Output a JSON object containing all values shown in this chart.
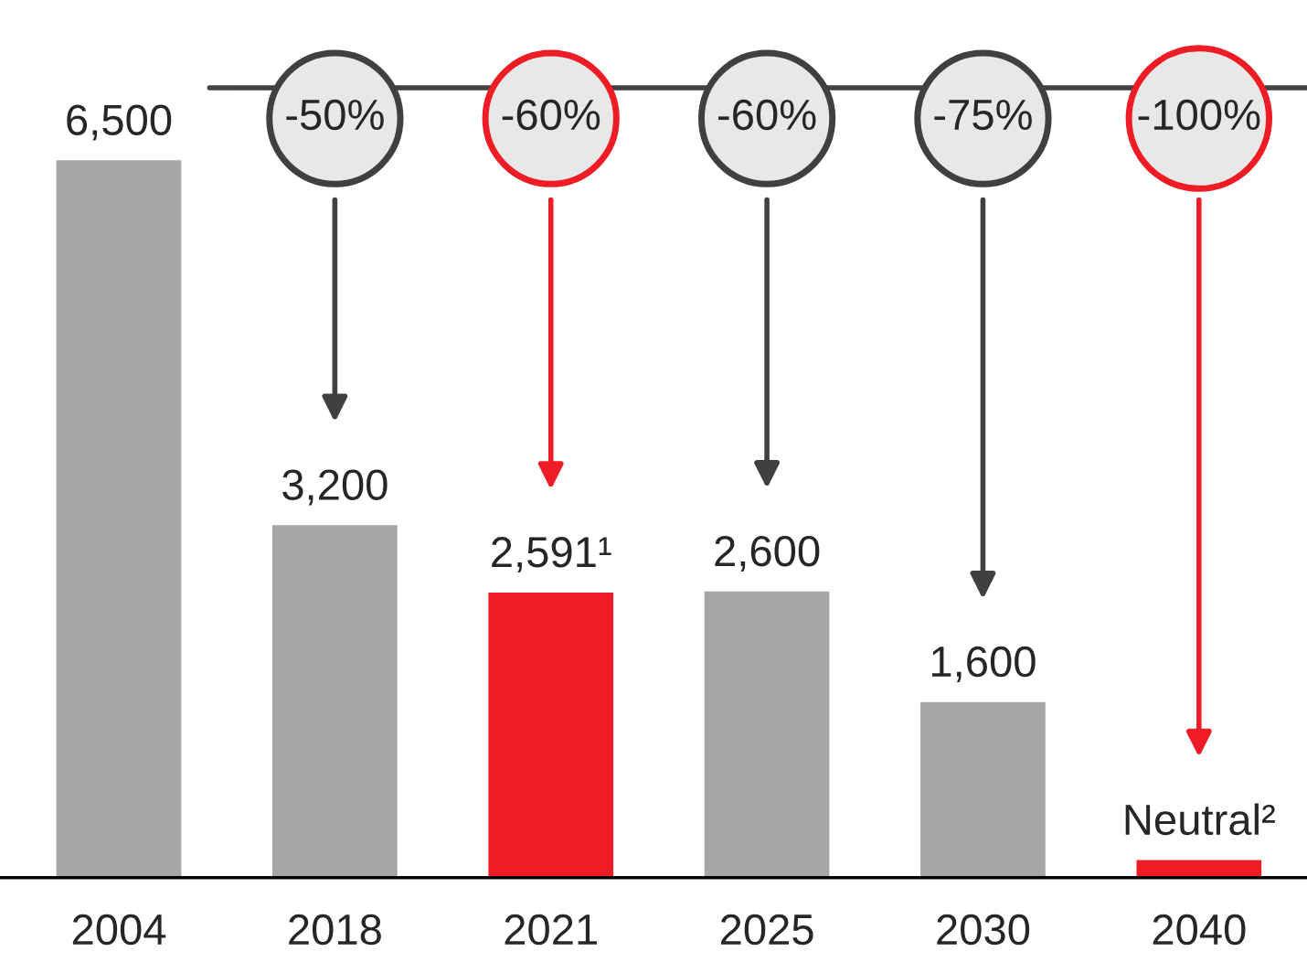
{
  "chart_data": {
    "type": "bar",
    "categories": [
      "2004",
      "2018",
      "2021",
      "2025",
      "2030",
      "2040"
    ],
    "values": [
      6500,
      3200,
      2591,
      2600,
      1600,
      170
    ],
    "colors": [
      "#a6a6a6",
      "#a6a6a6",
      "#ee1c25",
      "#a6a6a6",
      "#a6a6a6",
      "#ee1c25"
    ],
    "value_labels": [
      "6,500",
      "3,200",
      "2,591¹",
      "2,600",
      "1,600",
      "Neutral²"
    ],
    "annotations": [
      "-50%",
      "-60%",
      "-60%",
      "-75%",
      "-100%"
    ],
    "grid": false
  }
}
